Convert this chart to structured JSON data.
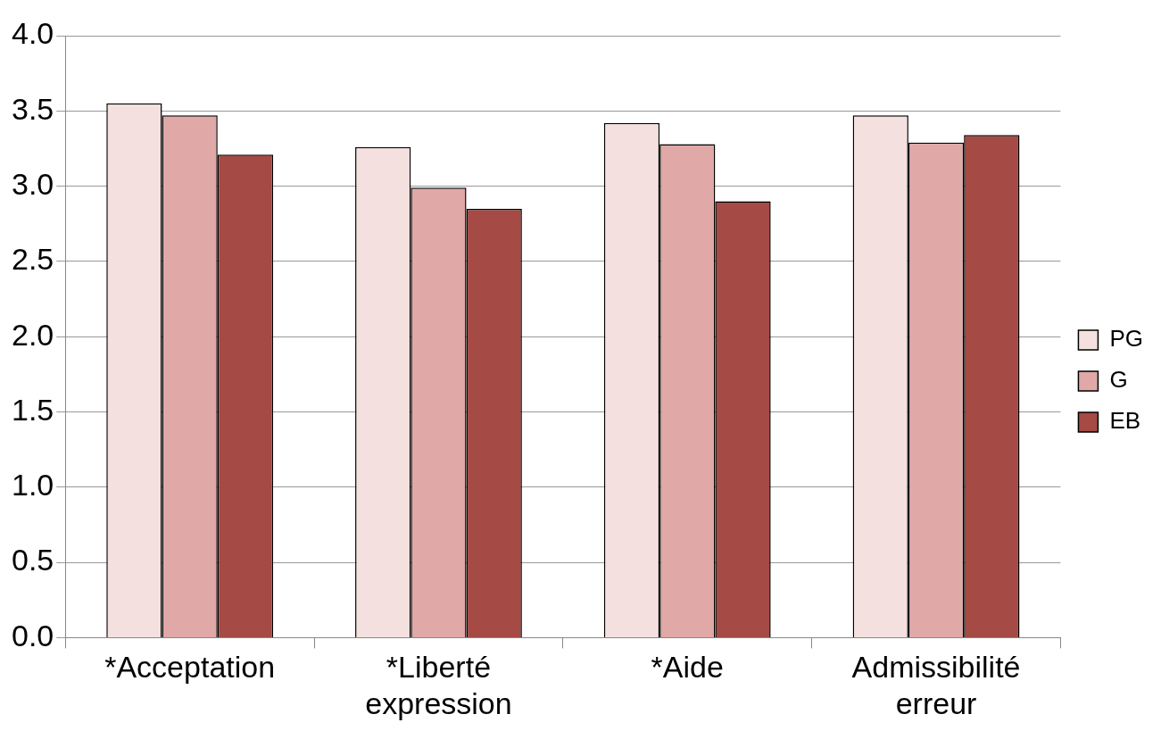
{
  "chart_data": {
    "type": "bar",
    "categories": [
      "*Acceptation",
      "*Liberté expression",
      "*Aide",
      "Admissibilité erreur"
    ],
    "series": [
      {
        "name": "PG",
        "color": "#f4e1df",
        "values": [
          3.55,
          3.26,
          3.42,
          3.47
        ]
      },
      {
        "name": "G",
        "color": "#e0a8a6",
        "values": [
          3.47,
          2.99,
          3.28,
          3.29
        ]
      },
      {
        "name": "EB",
        "color": "#a54a44",
        "values": [
          3.21,
          2.85,
          2.9,
          3.34
        ]
      }
    ],
    "ylim": [
      0,
      4
    ],
    "yticks": [
      {
        "value": 0,
        "label": "0.0"
      },
      {
        "value": 0.5,
        "label": "0.5"
      },
      {
        "value": 1,
        "label": "1.0"
      },
      {
        "value": 1.5,
        "label": "1.5"
      },
      {
        "value": 2,
        "label": "2.0"
      },
      {
        "value": 2.5,
        "label": "2.5"
      },
      {
        "value": 3,
        "label": "3.0"
      },
      {
        "value": 3.5,
        "label": "3.5"
      },
      {
        "value": 4,
        "label": "4.0"
      }
    ],
    "grid": "y",
    "legend": "right"
  }
}
